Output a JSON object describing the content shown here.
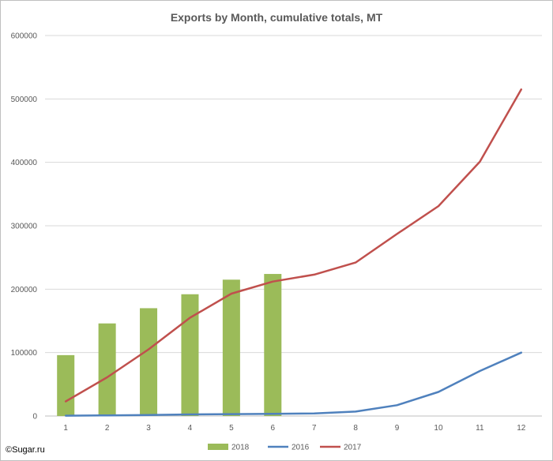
{
  "chart_data": {
    "type": "bar+line",
    "title": "Exports by Month, cumulative totals, MT",
    "categories": [
      "1",
      "2",
      "3",
      "4",
      "5",
      "6",
      "7",
      "8",
      "9",
      "10",
      "11",
      "12"
    ],
    "ylim": [
      0,
      600000
    ],
    "yticks": [
      0,
      100000,
      200000,
      300000,
      400000,
      500000,
      600000
    ],
    "ytick_labels": [
      "0",
      "100000",
      "200000",
      "300000",
      "400000",
      "500000",
      "600000"
    ],
    "grid": true,
    "legend_position": "bottom",
    "series": [
      {
        "name": "2018",
        "kind": "bar",
        "color": "#9bbb59",
        "values": [
          96000,
          146000,
          170000,
          192000,
          215000,
          224000,
          null,
          null,
          null,
          null,
          null,
          null
        ]
      },
      {
        "name": "2016",
        "kind": "line",
        "color": "#4f81bd",
        "values": [
          500,
          1000,
          1500,
          2500,
          3000,
          3500,
          4000,
          7000,
          17000,
          38000,
          71000,
          100000
        ]
      },
      {
        "name": "2017",
        "kind": "line",
        "color": "#c0504d",
        "values": [
          23000,
          61000,
          105000,
          155000,
          193000,
          212000,
          223000,
          242000,
          287000,
          331000,
          401000,
          515000
        ]
      }
    ]
  },
  "credit": "©Sugar.ru"
}
